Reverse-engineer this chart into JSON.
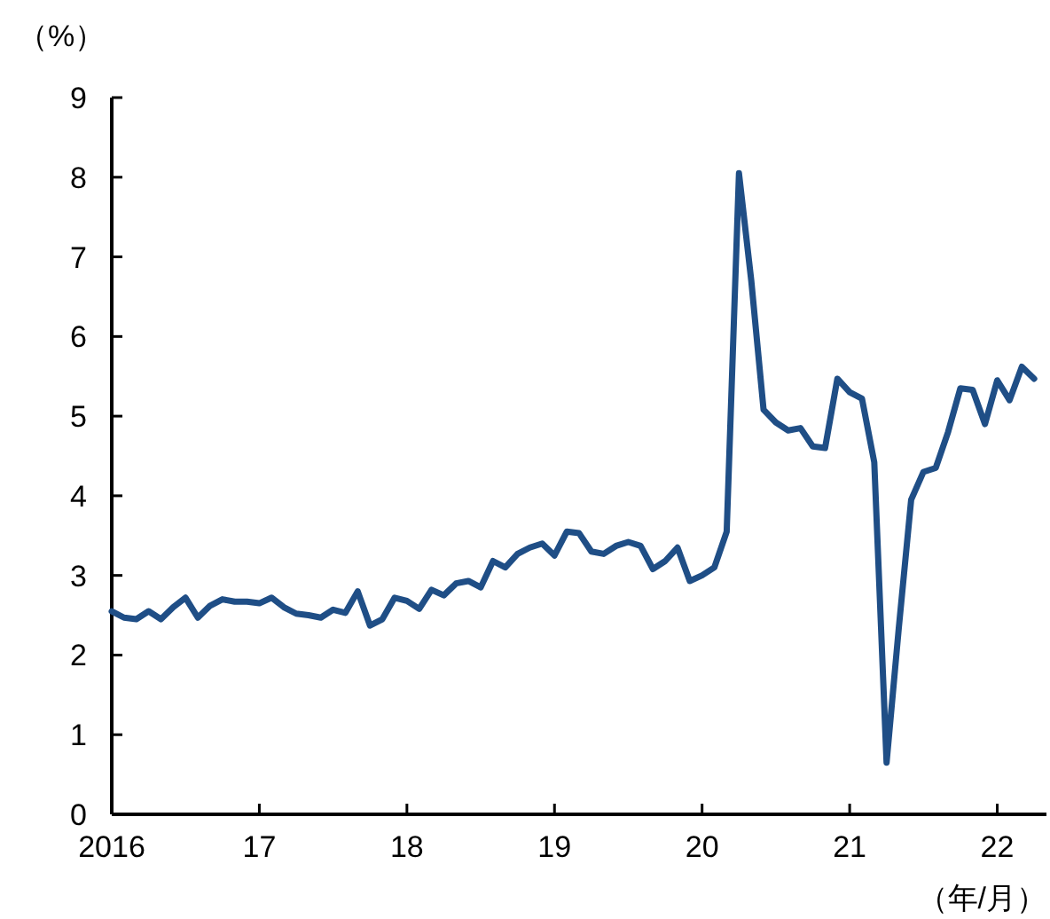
{
  "chart_data": {
    "type": "line",
    "ylabel": "（%）",
    "xlabel": "（年/月）",
    "x": [
      "2016-01",
      "2016-02",
      "2016-03",
      "2016-04",
      "2016-05",
      "2016-06",
      "2016-07",
      "2016-08",
      "2016-09",
      "2016-10",
      "2016-11",
      "2016-12",
      "2017-01",
      "2017-02",
      "2017-03",
      "2017-04",
      "2017-05",
      "2017-06",
      "2017-07",
      "2017-08",
      "2017-09",
      "2017-10",
      "2017-11",
      "2017-12",
      "2018-01",
      "2018-02",
      "2018-03",
      "2018-04",
      "2018-05",
      "2018-06",
      "2018-07",
      "2018-08",
      "2018-09",
      "2018-10",
      "2018-11",
      "2018-12",
      "2019-01",
      "2019-02",
      "2019-03",
      "2019-04",
      "2019-05",
      "2019-06",
      "2019-07",
      "2019-08",
      "2019-09",
      "2019-10",
      "2019-11",
      "2019-12",
      "2020-01",
      "2020-02",
      "2020-03",
      "2020-04",
      "2020-05",
      "2020-06",
      "2020-07",
      "2020-08",
      "2020-09",
      "2020-10",
      "2020-11",
      "2020-12",
      "2021-01",
      "2021-02",
      "2021-03",
      "2021-04",
      "2021-05",
      "2021-06",
      "2021-07",
      "2021-08",
      "2021-09",
      "2021-10",
      "2021-11",
      "2021-12",
      "2022-01",
      "2022-02",
      "2022-03",
      "2022-04"
    ],
    "series": [
      {
        "color": "#1f4e86",
        "values": [
          2.55,
          2.47,
          2.45,
          2.55,
          2.45,
          2.6,
          2.72,
          2.47,
          2.62,
          2.7,
          2.67,
          2.67,
          2.65,
          2.72,
          2.6,
          2.52,
          2.5,
          2.47,
          2.57,
          2.53,
          2.8,
          2.37,
          2.45,
          2.72,
          2.68,
          2.58,
          2.82,
          2.75,
          2.9,
          2.93,
          2.85,
          3.18,
          3.1,
          3.27,
          3.35,
          3.4,
          3.25,
          3.55,
          3.53,
          3.3,
          3.27,
          3.37,
          3.42,
          3.37,
          3.08,
          3.18,
          3.35,
          2.93,
          3.0,
          3.1,
          3.55,
          8.05,
          6.7,
          5.08,
          4.92,
          4.82,
          4.85,
          4.62,
          4.6,
          5.47,
          5.3,
          5.22,
          4.42,
          0.65,
          2.35,
          3.95,
          4.3,
          4.35,
          4.8,
          5.35,
          5.33,
          4.9,
          5.45,
          5.2,
          5.62,
          5.47
        ]
      }
    ],
    "xlim": [
      "2016-01",
      "2022-05"
    ],
    "xticks": [
      {
        "value": "2016-01",
        "label": "2016"
      },
      {
        "value": "2017-01",
        "label": "17"
      },
      {
        "value": "2018-01",
        "label": "18"
      },
      {
        "value": "2019-01",
        "label": "19"
      },
      {
        "value": "2020-01",
        "label": "20"
      },
      {
        "value": "2021-01",
        "label": "21"
      },
      {
        "value": "2022-01",
        "label": "22"
      }
    ],
    "ylim": [
      0,
      9
    ],
    "yticks": [
      0,
      1,
      2,
      3,
      4,
      5,
      6,
      7,
      8,
      9
    ],
    "grid": false,
    "marker": "none",
    "line_style": "solid"
  }
}
